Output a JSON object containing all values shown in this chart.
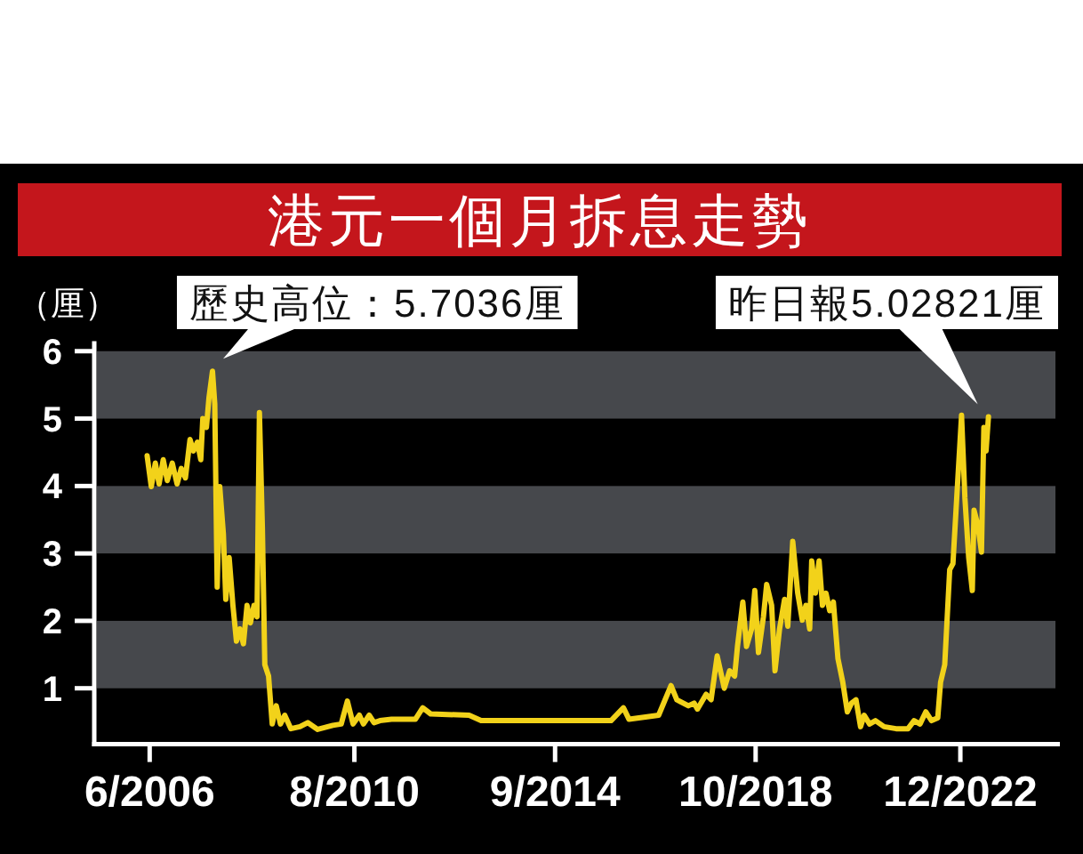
{
  "chart_data": {
    "type": "line",
    "title": "港元一個月拆息走勢",
    "ylabel": "（厘）",
    "x": [
      "2006-05-13",
      "2006-06-13",
      "2006-07-13",
      "2006-08-10",
      "2006-09-10",
      "2006-10-10",
      "2006-11-16",
      "2006-12-22",
      "2007-01-22",
      "2007-02-22",
      "2007-03-28",
      "2007-04-22",
      "2007-05-22",
      "2007-06-16",
      "2007-07-01",
      "2007-07-28",
      "2007-08-16",
      "2007-09-11",
      "2007-09-28",
      "2007-10-16",
      "2007-11-04",
      "2007-12-01",
      "2007-12-19",
      "2008-01-13",
      "2008-02-10",
      "2008-03-07",
      "2008-04-01",
      "2008-04-28",
      "2008-05-25",
      "2008-06-19",
      "2008-07-16",
      "2008-08-07",
      "2008-08-25",
      "2008-09-16",
      "2008-10-04",
      "2008-11-01",
      "2008-11-28",
      "2008-12-28",
      "2009-01-28",
      "2009-03-01",
      "2009-04-16",
      "2009-06-22",
      "2009-08-19",
      "2009-11-01",
      "2010-02-22",
      "2010-04-25",
      "2010-06-10",
      "2010-07-22",
      "2010-09-07",
      "2010-10-07",
      "2010-11-19",
      "2010-12-25",
      "2011-02-07",
      "2011-05-04",
      "2011-10-28",
      "2011-12-22",
      "2012-02-19",
      "2012-12-01",
      "2013-02-28",
      "2013-11-19",
      "2014-04-01",
      "2015-10-22",
      "2016-01-22",
      "2016-03-04",
      "2016-10-10",
      "2017-01-10",
      "2017-02-22",
      "2017-05-19",
      "2017-07-01",
      "2017-07-25",
      "2017-09-28",
      "2017-11-04",
      "2017-12-19",
      "2018-02-10",
      "2018-03-22",
      "2018-04-28",
      "2018-05-19",
      "2018-06-28",
      "2018-07-25",
      "2018-09-01",
      "2018-09-25",
      "2018-10-22",
      "2018-11-28",
      "2018-12-22",
      "2019-01-28",
      "2019-02-22",
      "2019-03-28",
      "2019-05-04",
      "2019-05-28",
      "2019-07-04",
      "2019-08-10",
      "2019-09-13",
      "2019-10-10",
      "2019-11-07",
      "2019-11-22",
      "2019-12-19",
      "2020-01-16",
      "2020-02-10",
      "2020-03-07",
      "2020-04-04",
      "2020-05-01",
      "2020-06-04",
      "2020-07-10",
      "2020-08-13",
      "2020-09-13",
      "2020-10-16",
      "2020-11-19",
      "2020-12-16",
      "2021-01-25",
      "2021-03-10",
      "2021-05-13",
      "2021-08-10",
      "2021-11-07",
      "2021-12-22",
      "2022-02-04",
      "2022-03-19",
      "2022-05-01",
      "2022-06-16",
      "2022-07-07",
      "2022-08-07",
      "2022-09-13",
      "2022-10-07",
      "2022-11-04",
      "2022-12-10",
      "2023-01-04",
      "2023-02-01",
      "2023-02-28",
      "2023-03-13",
      "2023-04-10",
      "2023-05-07",
      "2023-05-25",
      "2023-06-10",
      "2023-06-28"
    ],
    "values": [
      4.45,
      3.99,
      4.34,
      4.03,
      4.39,
      4.08,
      4.34,
      4.03,
      4.26,
      4.12,
      4.69,
      4.52,
      4.65,
      4.39,
      5.0,
      4.87,
      5.31,
      5.7036,
      5.22,
      2.5,
      3.99,
      3.29,
      2.32,
      2.94,
      2.23,
      1.7,
      1.88,
      1.66,
      2.23,
      1.97,
      2.23,
      2.06,
      5.09,
      3.37,
      1.35,
      1.18,
      0.47,
      0.74,
      0.47,
      0.6,
      0.4,
      0.43,
      0.49,
      0.39,
      0.45,
      0.47,
      0.81,
      0.47,
      0.6,
      0.47,
      0.6,
      0.49,
      0.52,
      0.54,
      0.54,
      0.71,
      0.62,
      0.6,
      0.52,
      0.52,
      0.52,
      0.52,
      0.71,
      0.54,
      0.6,
      1.04,
      0.83,
      0.74,
      0.78,
      0.69,
      0.91,
      0.83,
      1.48,
      1.0,
      1.26,
      1.18,
      1.62,
      2.28,
      1.62,
      1.88,
      2.45,
      1.53,
      2.06,
      2.54,
      2.23,
      1.26,
      1.88,
      2.32,
      1.92,
      3.18,
      2.41,
      2.01,
      2.23,
      1.88,
      2.89,
      2.41,
      2.89,
      2.23,
      2.41,
      2.15,
      2.28,
      1.44,
      1.09,
      0.65,
      0.78,
      0.83,
      0.43,
      0.6,
      0.47,
      0.52,
      0.43,
      0.4,
      0.4,
      0.52,
      0.47,
      0.65,
      0.52,
      0.56,
      1.09,
      1.35,
      2.76,
      2.85,
      3.82,
      5.05,
      3.82,
      2.94,
      2.45,
      3.64,
      3.42,
      3.02,
      4.87,
      4.52,
      5.02821
    ],
    "color": "#f2d21a",
    "xlim": [
      "2005-04-15",
      "2024-12-10"
    ],
    "ylim": [
      0.17,
      6.15
    ],
    "xticks": [
      {
        "value": "2006-06",
        "label": "6/2006"
      },
      {
        "value": "2010-08",
        "label": "8/2010"
      },
      {
        "value": "2014-09",
        "label": "9/2014"
      },
      {
        "value": "2018-10",
        "label": "10/2018"
      },
      {
        "value": "2022-12",
        "label": "12/2022"
      }
    ],
    "yticks": [
      1,
      2,
      3,
      4,
      5,
      6
    ],
    "bands": [
      {
        "axis": "y",
        "from": 1,
        "to": 2,
        "color": "#46484c"
      },
      {
        "axis": "y",
        "from": 3,
        "to": 4,
        "color": "#46484c"
      },
      {
        "axis": "y",
        "from": 5,
        "to": 6,
        "color": "#46484c"
      }
    ],
    "annotations": [
      {
        "text": "歷史高位：5.7036厘",
        "x": "2007-09-11",
        "y": 5.7036
      },
      {
        "text": "昨日報5.02821厘",
        "x": "2023-06-28",
        "y": 5.02821
      }
    ]
  }
}
